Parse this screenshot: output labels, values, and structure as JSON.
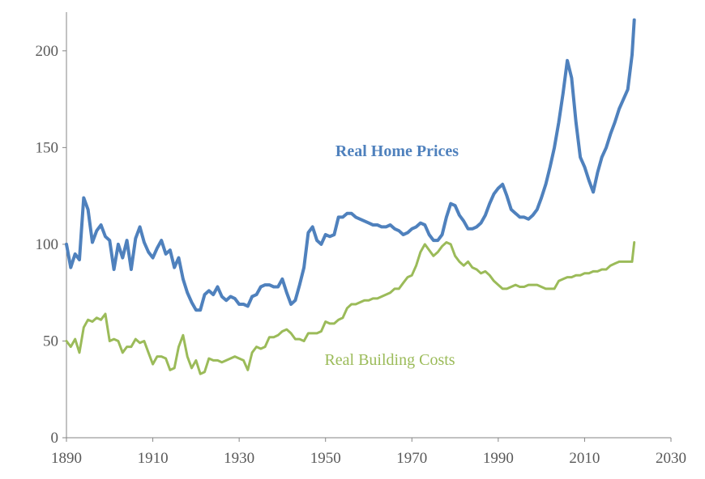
{
  "chart_data": {
    "type": "line",
    "title": "",
    "xlabel": "",
    "ylabel": "",
    "xlim": [
      1890,
      2030
    ],
    "ylim": [
      0,
      220
    ],
    "x_ticks": [
      1890,
      1910,
      1930,
      1950,
      1970,
      1990,
      2010,
      2030
    ],
    "y_ticks": [
      0,
      50,
      100,
      150,
      200
    ],
    "grid": false,
    "legend": "none (series labelled inline)",
    "series": [
      {
        "name": "Real Home Prices",
        "color": "#4F81BD",
        "bold_label": true,
        "points": [
          [
            1890,
            100
          ],
          [
            1891,
            88
          ],
          [
            1892,
            95
          ],
          [
            1893,
            92
          ],
          [
            1894,
            124
          ],
          [
            1895,
            118
          ],
          [
            1896,
            101
          ],
          [
            1897,
            107
          ],
          [
            1898,
            110
          ],
          [
            1899,
            104
          ],
          [
            1900,
            102
          ],
          [
            1901,
            87
          ],
          [
            1902,
            100
          ],
          [
            1903,
            93
          ],
          [
            1904,
            102
          ],
          [
            1905,
            87
          ],
          [
            1906,
            103
          ],
          [
            1907,
            109
          ],
          [
            1908,
            101
          ],
          [
            1909,
            96
          ],
          [
            1910,
            93
          ],
          [
            1911,
            98
          ],
          [
            1912,
            102
          ],
          [
            1913,
            95
          ],
          [
            1914,
            97
          ],
          [
            1915,
            88
          ],
          [
            1916,
            93
          ],
          [
            1917,
            82
          ],
          [
            1918,
            75
          ],
          [
            1919,
            70
          ],
          [
            1920,
            66
          ],
          [
            1921,
            66
          ],
          [
            1922,
            74
          ],
          [
            1923,
            76
          ],
          [
            1924,
            74
          ],
          [
            1925,
            78
          ],
          [
            1926,
            73
          ],
          [
            1927,
            71
          ],
          [
            1928,
            73
          ],
          [
            1929,
            72
          ],
          [
            1930,
            69
          ],
          [
            1931,
            69
          ],
          [
            1932,
            68
          ],
          [
            1933,
            73
          ],
          [
            1934,
            74
          ],
          [
            1935,
            78
          ],
          [
            1936,
            79
          ],
          [
            1937,
            79
          ],
          [
            1938,
            78
          ],
          [
            1939,
            78
          ],
          [
            1940,
            82
          ],
          [
            1941,
            75
          ],
          [
            1942,
            69
          ],
          [
            1943,
            71
          ],
          [
            1944,
            79
          ],
          [
            1945,
            88
          ],
          [
            1946,
            106
          ],
          [
            1947,
            109
          ],
          [
            1948,
            102
          ],
          [
            1949,
            100
          ],
          [
            1950,
            105
          ],
          [
            1951,
            104
          ],
          [
            1952,
            105
          ],
          [
            1953,
            114
          ],
          [
            1954,
            114
          ],
          [
            1955,
            116
          ],
          [
            1956,
            116
          ],
          [
            1957,
            114
          ],
          [
            1958,
            113
          ],
          [
            1959,
            112
          ],
          [
            1960,
            111
          ],
          [
            1961,
            110
          ],
          [
            1962,
            110
          ],
          [
            1963,
            109
          ],
          [
            1964,
            109
          ],
          [
            1965,
            110
          ],
          [
            1966,
            108
          ],
          [
            1967,
            107
          ],
          [
            1968,
            105
          ],
          [
            1969,
            106
          ],
          [
            1970,
            108
          ],
          [
            1971,
            109
          ],
          [
            1972,
            111
          ],
          [
            1973,
            110
          ],
          [
            1974,
            105
          ],
          [
            1975,
            102
          ],
          [
            1976,
            102
          ],
          [
            1977,
            105
          ],
          [
            1978,
            114
          ],
          [
            1979,
            121
          ],
          [
            1980,
            120
          ],
          [
            1981,
            115
          ],
          [
            1982,
            112
          ],
          [
            1983,
            108
          ],
          [
            1984,
            108
          ],
          [
            1985,
            109
          ],
          [
            1986,
            111
          ],
          [
            1987,
            115
          ],
          [
            1988,
            121
          ],
          [
            1989,
            126
          ],
          [
            1990,
            129
          ],
          [
            1991,
            131
          ],
          [
            1992,
            125
          ],
          [
            1993,
            118
          ],
          [
            1994,
            116
          ],
          [
            1995,
            114
          ],
          [
            1996,
            114
          ],
          [
            1997,
            113
          ],
          [
            1998,
            115
          ],
          [
            1999,
            118
          ],
          [
            2000,
            124
          ],
          [
            2001,
            131
          ],
          [
            2002,
            140
          ],
          [
            2003,
            150
          ],
          [
            2004,
            163
          ],
          [
            2005,
            178
          ],
          [
            2006,
            195
          ],
          [
            2007,
            186
          ],
          [
            2008,
            163
          ],
          [
            2009,
            145
          ],
          [
            2010,
            140
          ],
          [
            2011,
            133
          ],
          [
            2012,
            127
          ],
          [
            2013,
            137
          ],
          [
            2014,
            145
          ],
          [
            2015,
            150
          ],
          [
            2016,
            157
          ],
          [
            2017,
            163
          ],
          [
            2018,
            170
          ],
          [
            2019,
            175
          ],
          [
            2020,
            180
          ],
          [
            2021,
            198
          ],
          [
            2021.5,
            216
          ]
        ]
      },
      {
        "name": "Real Building Costs",
        "color": "#9BBB59",
        "bold_label": false,
        "points": [
          [
            1890,
            50
          ],
          [
            1891,
            47
          ],
          [
            1892,
            51
          ],
          [
            1893,
            44
          ],
          [
            1894,
            57
          ],
          [
            1895,
            61
          ],
          [
            1896,
            60
          ],
          [
            1897,
            62
          ],
          [
            1898,
            61
          ],
          [
            1899,
            64
          ],
          [
            1900,
            50
          ],
          [
            1901,
            51
          ],
          [
            1902,
            50
          ],
          [
            1903,
            44
          ],
          [
            1904,
            47
          ],
          [
            1905,
            47
          ],
          [
            1906,
            51
          ],
          [
            1907,
            49
          ],
          [
            1908,
            50
          ],
          [
            1909,
            44
          ],
          [
            1910,
            38
          ],
          [
            1911,
            42
          ],
          [
            1912,
            42
          ],
          [
            1913,
            41
          ],
          [
            1914,
            35
          ],
          [
            1915,
            36
          ],
          [
            1916,
            47
          ],
          [
            1917,
            53
          ],
          [
            1918,
            42
          ],
          [
            1919,
            36
          ],
          [
            1920,
            40
          ],
          [
            1921,
            33
          ],
          [
            1922,
            34
          ],
          [
            1923,
            41
          ],
          [
            1924,
            40
          ],
          [
            1925,
            40
          ],
          [
            1926,
            39
          ],
          [
            1927,
            40
          ],
          [
            1928,
            41
          ],
          [
            1929,
            42
          ],
          [
            1930,
            41
          ],
          [
            1931,
            40
          ],
          [
            1932,
            35
          ],
          [
            1933,
            44
          ],
          [
            1934,
            47
          ],
          [
            1935,
            46
          ],
          [
            1936,
            47
          ],
          [
            1937,
            52
          ],
          [
            1938,
            52
          ],
          [
            1939,
            53
          ],
          [
            1940,
            55
          ],
          [
            1941,
            56
          ],
          [
            1942,
            54
          ],
          [
            1943,
            51
          ],
          [
            1944,
            51
          ],
          [
            1945,
            50
          ],
          [
            1946,
            54
          ],
          [
            1947,
            54
          ],
          [
            1948,
            54
          ],
          [
            1949,
            55
          ],
          [
            1950,
            60
          ],
          [
            1951,
            59
          ],
          [
            1952,
            59
          ],
          [
            1953,
            61
          ],
          [
            1954,
            62
          ],
          [
            1955,
            67
          ],
          [
            1956,
            69
          ],
          [
            1957,
            69
          ],
          [
            1958,
            70
          ],
          [
            1959,
            71
          ],
          [
            1960,
            71
          ],
          [
            1961,
            72
          ],
          [
            1962,
            72
          ],
          [
            1963,
            73
          ],
          [
            1964,
            74
          ],
          [
            1965,
            75
          ],
          [
            1966,
            77
          ],
          [
            1967,
            77
          ],
          [
            1968,
            80
          ],
          [
            1969,
            83
          ],
          [
            1970,
            84
          ],
          [
            1971,
            89
          ],
          [
            1972,
            96
          ],
          [
            1973,
            100
          ],
          [
            1974,
            97
          ],
          [
            1975,
            94
          ],
          [
            1976,
            96
          ],
          [
            1977,
            99
          ],
          [
            1978,
            101
          ],
          [
            1979,
            100
          ],
          [
            1980,
            94
          ],
          [
            1981,
            91
          ],
          [
            1982,
            89
          ],
          [
            1983,
            91
          ],
          [
            1984,
            88
          ],
          [
            1985,
            87
          ],
          [
            1986,
            85
          ],
          [
            1987,
            86
          ],
          [
            1988,
            84
          ],
          [
            1989,
            81
          ],
          [
            1990,
            79
          ],
          [
            1991,
            77
          ],
          [
            1992,
            77
          ],
          [
            1993,
            78
          ],
          [
            1994,
            79
          ],
          [
            1995,
            78
          ],
          [
            1996,
            78
          ],
          [
            1997,
            79
          ],
          [
            1998,
            79
          ],
          [
            1999,
            79
          ],
          [
            2000,
            78
          ],
          [
            2001,
            77
          ],
          [
            2002,
            77
          ],
          [
            2003,
            77
          ],
          [
            2004,
            81
          ],
          [
            2005,
            82
          ],
          [
            2006,
            83
          ],
          [
            2007,
            83
          ],
          [
            2008,
            84
          ],
          [
            2009,
            84
          ],
          [
            2010,
            85
          ],
          [
            2011,
            85
          ],
          [
            2012,
            86
          ],
          [
            2013,
            86
          ],
          [
            2014,
            87
          ],
          [
            2015,
            87
          ],
          [
            2016,
            89
          ],
          [
            2017,
            90
          ],
          [
            2018,
            91
          ],
          [
            2019,
            91
          ],
          [
            2020,
            91
          ],
          [
            2021,
            91
          ],
          [
            2021.5,
            101
          ]
        ]
      }
    ]
  }
}
